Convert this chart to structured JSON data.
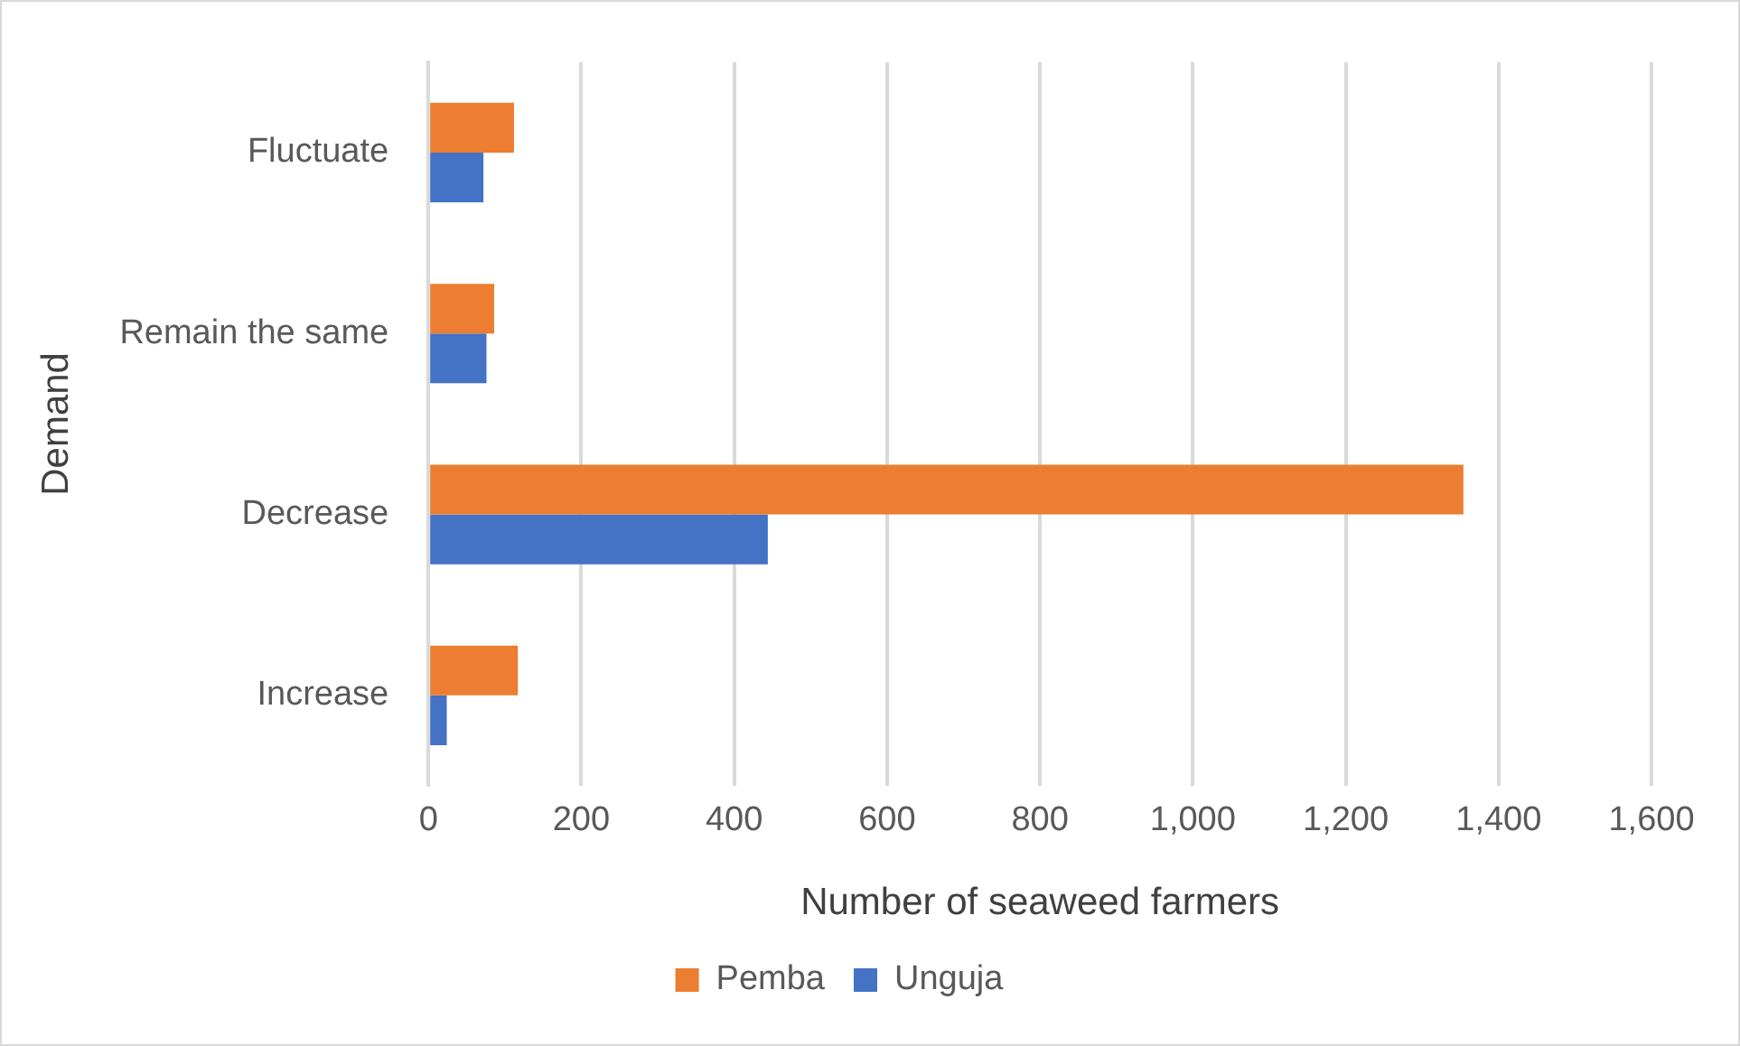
{
  "chart_data": {
    "type": "bar",
    "orientation": "horizontal",
    "xlabel": "Number of seaweed farmers",
    "ylabel": "Demand",
    "categories": [
      "Fluctuate",
      "Remain the same",
      "Decrease",
      "Increase"
    ],
    "series": [
      {
        "name": "Pemba",
        "color": "#ed7d31",
        "values": [
          112,
          86,
          1354,
          117
        ]
      },
      {
        "name": "Unguja",
        "color": "#4472c4",
        "values": [
          72,
          76,
          444,
          24
        ]
      }
    ],
    "xlim": [
      0,
      1600
    ],
    "xticks": [
      0,
      {
        "value": 200,
        "label": "200"
      },
      {
        "value": 400,
        "label": "400"
      },
      {
        "value": 600,
        "label": "600"
      },
      {
        "value": 800,
        "label": "800"
      },
      {
        "value": 1000,
        "label": "1,000"
      },
      {
        "value": 1200,
        "label": "1,200"
      },
      {
        "value": 1400,
        "label": "1,400"
      },
      {
        "value": 1600,
        "label": "1,600"
      }
    ],
    "grid": "x",
    "legend": "bottom"
  }
}
